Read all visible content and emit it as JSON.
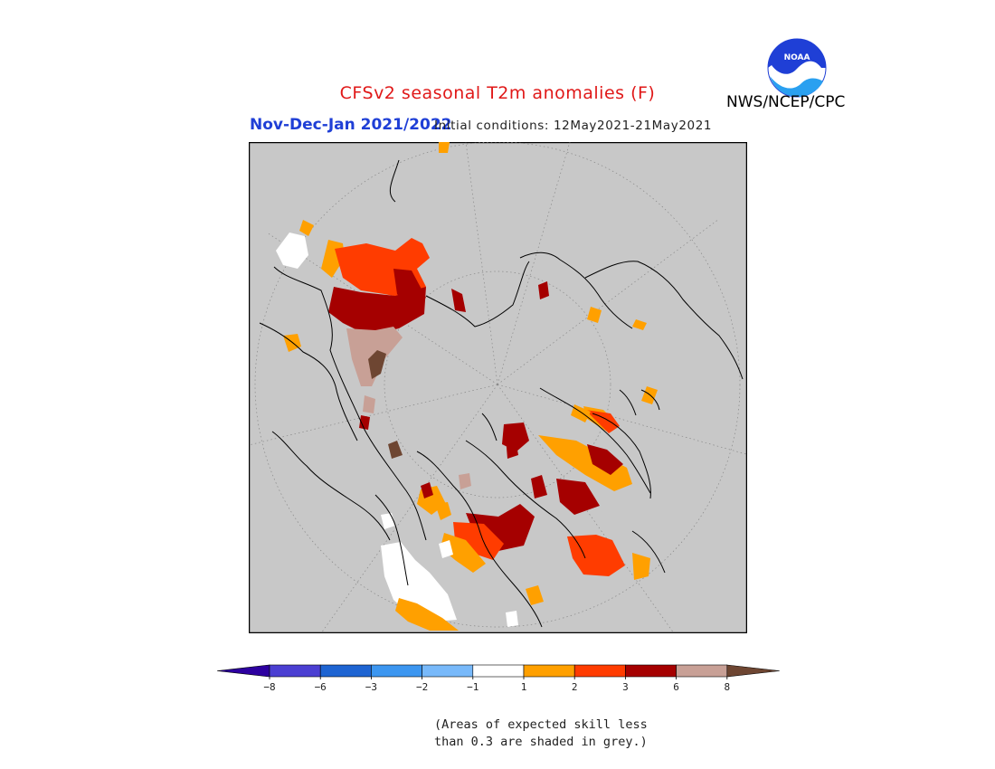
{
  "header": {
    "title": "CFSv2 seasonal T2m anomalies (F)",
    "period": "Nov-Dec-Jan 2021/2022",
    "initial_conditions": "Initial conditions: 12May2021-21May2021",
    "agency": "NWS/NCEP/CPC",
    "logo_text": "NOAA"
  },
  "colors": {
    "background_grey": "#c8c8c8",
    "coastline": "#000000",
    "title_red": "#e01818",
    "period_blue": "#1f3fd6"
  },
  "legend": {
    "bins": [
      {
        "range": "< -8",
        "color": "#2d00a0"
      },
      {
        "range": "-8 to -6",
        "color": "#4b3fd2"
      },
      {
        "range": "-6 to -3",
        "color": "#1e64d2"
      },
      {
        "range": "-3 to -2",
        "color": "#3c96f0"
      },
      {
        "range": "-2 to -1",
        "color": "#78b9fa"
      },
      {
        "range": "-1 to 1",
        "color": "#ffffff"
      },
      {
        "range": "1 to 2",
        "color": "#ffa000"
      },
      {
        "range": "2 to 3",
        "color": "#ff3c00"
      },
      {
        "range": "3 to 6",
        "color": "#a50000"
      },
      {
        "range": "6 to 8",
        "color": "#c8a096"
      },
      {
        "range": "> 8",
        "color": "#6e4632"
      }
    ],
    "tick_labels": [
      "−8",
      "−6",
      "−3",
      "−2",
      "−1",
      "1",
      "2",
      "3",
      "6",
      "8"
    ]
  },
  "note": {
    "line1": "(Areas of expected skill less",
    "line2": "than 0.3 are shaded in grey.)"
  }
}
